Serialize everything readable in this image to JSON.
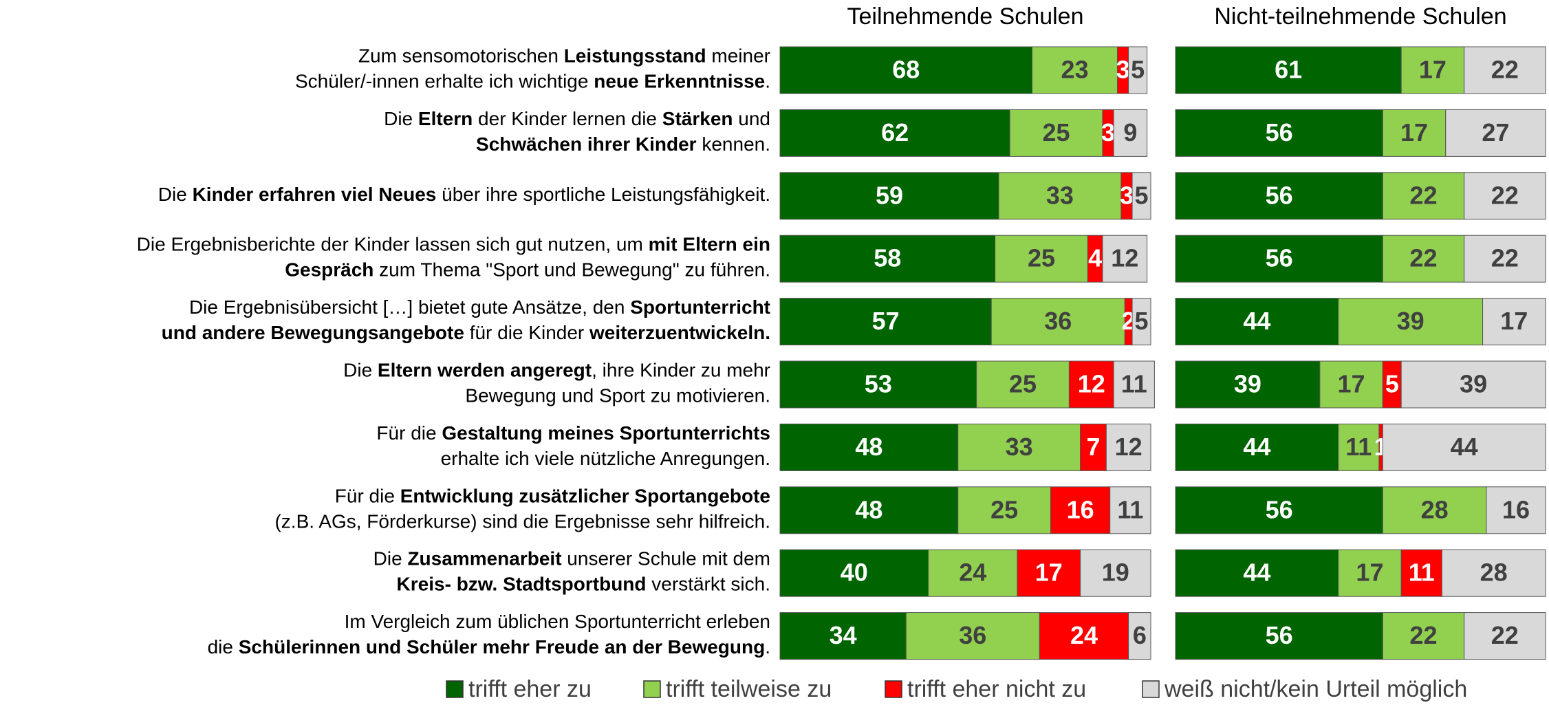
{
  "chart_data": {
    "type": "stacked_bar",
    "orientation": "horizontal",
    "xlim": [
      0,
      100
    ],
    "categories": [
      [
        [
          {
            "text": "Zum sensomotorischen ",
            "bold": false
          },
          {
            "text": "Leistungsstand",
            "bold": true
          },
          {
            "text": " meiner",
            "bold": false
          }
        ],
        [
          {
            "text": "Schüler/-innen erhalte ich wichtige ",
            "bold": false
          },
          {
            "text": "neue Erkenntnisse",
            "bold": true
          },
          {
            "text": ".",
            "bold": false
          }
        ]
      ],
      [
        [
          {
            "text": "Die ",
            "bold": false
          },
          {
            "text": "Eltern",
            "bold": true
          },
          {
            "text": " der Kinder lernen die ",
            "bold": false
          },
          {
            "text": "Stärken",
            "bold": true
          },
          {
            "text": " und",
            "bold": false
          }
        ],
        [
          {
            "text": "Schwächen ihrer Kinder",
            "bold": true
          },
          {
            "text": " kennen.",
            "bold": false
          }
        ]
      ],
      [
        [
          {
            "text": "Die ",
            "bold": false
          },
          {
            "text": "Kinder erfahren viel Neues",
            "bold": true
          },
          {
            "text": " über ihre sportliche Leistungsfähigkeit.",
            "bold": false
          }
        ]
      ],
      [
        [
          {
            "text": "Die Ergebnisberichte der Kinder lassen sich gut nutzen, um ",
            "bold": false
          },
          {
            "text": "mit Eltern ein",
            "bold": true
          }
        ],
        [
          {
            "text": "Gespräch",
            "bold": true
          },
          {
            "text": " zum Thema \"Sport und Bewegung\" zu führen.",
            "bold": false
          }
        ]
      ],
      [
        [
          {
            "text": "Die Ergebnisübersicht […] bietet gute Ansätze, den ",
            "bold": false
          },
          {
            "text": "Sportunterricht",
            "bold": true
          }
        ],
        [
          {
            "text": "und andere Bewegungsangebote",
            "bold": true
          },
          {
            "text": " für die Kinder ",
            "bold": false
          },
          {
            "text": "weiterzuentwickeln.",
            "bold": true
          }
        ]
      ],
      [
        [
          {
            "text": "Die ",
            "bold": false
          },
          {
            "text": "Eltern werden angeregt",
            "bold": true
          },
          {
            "text": ", ihre Kinder zu mehr",
            "bold": false
          }
        ],
        [
          {
            "text": "Bewegung und Sport zu motivieren.",
            "bold": false
          }
        ]
      ],
      [
        [
          {
            "text": "Für die ",
            "bold": false
          },
          {
            "text": "Gestaltung meines Sportunterrichts",
            "bold": true
          }
        ],
        [
          {
            "text": "erhalte ich viele nützliche Anregungen.",
            "bold": false
          }
        ]
      ],
      [
        [
          {
            "text": "Für die ",
            "bold": false
          },
          {
            "text": "Entwicklung zusätzlicher Sportangebote",
            "bold": true
          }
        ],
        [
          {
            "text": "(z.B. AGs, Förderkurse) sind die Ergebnisse sehr hilfreich.",
            "bold": false
          }
        ]
      ],
      [
        [
          {
            "text": "Die ",
            "bold": false
          },
          {
            "text": "Zusammenarbeit",
            "bold": true
          },
          {
            "text": " unserer Schule mit dem",
            "bold": false
          }
        ],
        [
          {
            "text": "Kreis- bzw. Stadtsportbund",
            "bold": true
          },
          {
            "text": " verstärkt sich.",
            "bold": false
          }
        ]
      ],
      [
        [
          {
            "text": "Im Vergleich zum üblichen Sportunterricht erleben",
            "bold": false
          }
        ],
        [
          {
            "text": "die ",
            "bold": false
          },
          {
            "text": "Schülerinnen und Schüler mehr Freude an der Bewegung",
            "bold": true
          },
          {
            "text": ".",
            "bold": false
          }
        ]
      ]
    ],
    "series": [
      {
        "name": "trifft eher zu",
        "color": "#006400",
        "label_color": "#ffffff"
      },
      {
        "name": "trifft teilweise zu",
        "color": "#92d050",
        "label_color": "#404040"
      },
      {
        "name": "trifft eher nicht zu",
        "color": "#ff0000",
        "label_color": "#ffffff"
      },
      {
        "name": "weiß nicht/kein Urteil möglich",
        "color": "#d9d9d9",
        "label_color": "#404040"
      }
    ],
    "panels": [
      {
        "title": "Teilnehmende Schulen",
        "values": [
          [
            68,
            62,
            59,
            58,
            57,
            53,
            48,
            48,
            40,
            34
          ],
          [
            23,
            25,
            33,
            25,
            36,
            25,
            33,
            25,
            24,
            36
          ],
          [
            3,
            3,
            3,
            4,
            2,
            12,
            7,
            16,
            17,
            24
          ],
          [
            5,
            9,
            5,
            12,
            5,
            11,
            12,
            11,
            19,
            6
          ]
        ]
      },
      {
        "title": "Nicht-teilnehmende Schulen",
        "values": [
          [
            61,
            56,
            56,
            56,
            44,
            39,
            44,
            56,
            44,
            56
          ],
          [
            17,
            17,
            22,
            22,
            39,
            17,
            11,
            28,
            17,
            22
          ],
          [
            null,
            null,
            null,
            null,
            null,
            5,
            1,
            null,
            11,
            null
          ],
          [
            22,
            27,
            22,
            22,
            17,
            39,
            44,
            16,
            28,
            22
          ]
        ]
      }
    ]
  }
}
